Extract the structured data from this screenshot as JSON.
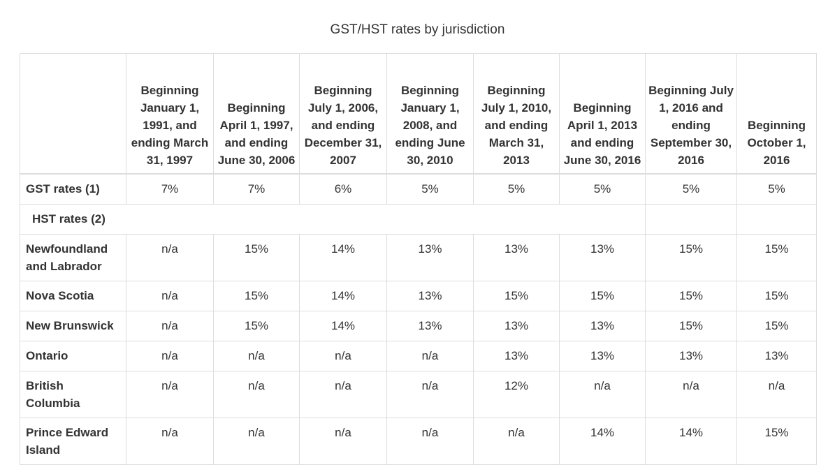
{
  "caption": "GST/HST rates by jurisdiction",
  "headers": [
    "",
    "Beginning January 1, 1991, and ending March 31, 1997",
    "Beginning April 1, 1997, and ending June 30, 2006",
    "Beginning July 1, 2006, and ending December 31, 2007",
    "Beginning January 1, 2008, and ending June 30, 2010",
    "Beginning July 1, 2010, and ending March 31, 2013",
    "Beginning April 1, 2013 and ending June 30, 2016",
    "Beginning July 1, 2016 and ending September 30, 2016",
    "Beginning October 1, 2016"
  ],
  "gst_row": {
    "label": "GST rates (1)",
    "values": [
      "7%",
      "7%",
      "6%",
      "5%",
      "5%",
      "5%",
      "5%",
      "5%"
    ]
  },
  "hst_section_label": "HST rates (2)",
  "hst_rows": [
    {
      "label": "Newfoundland and Labrador",
      "values": [
        "n/a",
        "15%",
        "14%",
        "13%",
        "13%",
        "13%",
        "15%",
        "15%"
      ]
    },
    {
      "label": "Nova Scotia",
      "values": [
        "n/a",
        "15%",
        "14%",
        "13%",
        "15%",
        "15%",
        "15%",
        "15%"
      ]
    },
    {
      "label": "New Brunswick",
      "values": [
        "n/a",
        "15%",
        "14%",
        "13%",
        "13%",
        "13%",
        "15%",
        "15%"
      ]
    },
    {
      "label": "Ontario",
      "values": [
        "n/a",
        "n/a",
        "n/a",
        "n/a",
        "13%",
        "13%",
        "13%",
        "13%"
      ]
    },
    {
      "label": "British Columbia",
      "values": [
        "n/a",
        "n/a",
        "n/a",
        "n/a",
        "12%",
        "n/a",
        "n/a",
        "n/a"
      ]
    },
    {
      "label": "Prince Edward Island",
      "values": [
        "n/a",
        "n/a",
        "n/a",
        "n/a",
        "n/a",
        "14%",
        "14%",
        "15%"
      ]
    }
  ]
}
